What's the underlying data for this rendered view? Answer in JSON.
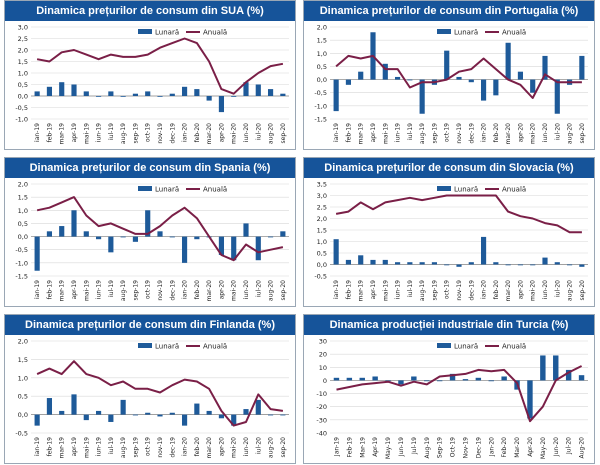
{
  "legend": {
    "monthly": "Lunară",
    "annual": "Anuală"
  },
  "colors": {
    "bar": "#1e5a99",
    "line": "#7a1f47",
    "title_bg": "#16549a",
    "grid": "#d8d8d8"
  },
  "chart_data": [
    {
      "id": "usa",
      "type": "bar+line",
      "title": "Dinamica prețurilor de consum din SUA (%)",
      "categories": [
        "ian-19",
        "feb-19",
        "mar-19",
        "apr-19",
        "mai-19",
        "iun-19",
        "iul-19",
        "aug-19",
        "sep-19",
        "oct-19",
        "nov-19",
        "dec-19",
        "ian-20",
        "feb-20",
        "mar-20",
        "apr-20",
        "mai-20",
        "iun-20",
        "iul-20",
        "aug-20",
        "sep-20"
      ],
      "yticks": [
        "-1,0",
        "-0,5",
        "0,0",
        "0,5",
        "1,0",
        "1,5",
        "2,0",
        "2,5",
        "3,0"
      ],
      "ylim": [
        -1.0,
        3.0
      ],
      "series": [
        {
          "name": "Lunară",
          "kind": "bar",
          "values": [
            0.2,
            0.4,
            0.6,
            0.5,
            0.2,
            0.0,
            0.2,
            0.0,
            0.1,
            0.2,
            0.0,
            0.1,
            0.4,
            0.3,
            -0.2,
            -0.7,
            0.0,
            0.6,
            0.5,
            0.3,
            0.1
          ]
        },
        {
          "name": "Anuală",
          "kind": "line",
          "values": [
            1.6,
            1.5,
            1.9,
            2.0,
            1.8,
            1.6,
            1.8,
            1.7,
            1.7,
            1.8,
            2.1,
            2.3,
            2.5,
            2.3,
            1.5,
            0.3,
            0.1,
            0.6,
            1.0,
            1.3,
            1.4
          ]
        }
      ]
    },
    {
      "id": "portugal",
      "type": "bar+line",
      "title": "Dinamica prețurilor de consum din Portugalia (%)",
      "categories": [
        "ian-19",
        "feb-19",
        "mar-19",
        "apr-19",
        "mai-19",
        "iun-19",
        "iul-19",
        "aug-19",
        "sep-19",
        "oct-19",
        "nov-19",
        "dec-19",
        "ian-20",
        "feb-20",
        "mar-20",
        "apr-20",
        "mai-20",
        "iun-20",
        "iul-20",
        "aug-20",
        "sep-20"
      ],
      "yticks": [
        "-1,5",
        "-1,0",
        "-0,5",
        "0,0",
        "0,5",
        "1,0",
        "1,5",
        "2,0"
      ],
      "ylim": [
        -1.5,
        2.0
      ],
      "series": [
        {
          "name": "Lunară",
          "kind": "bar",
          "values": [
            -1.2,
            -0.2,
            0.3,
            1.8,
            0.6,
            0.1,
            0.0,
            -1.3,
            -0.2,
            1.1,
            0.1,
            -0.1,
            -0.8,
            -0.6,
            1.4,
            0.3,
            -0.5,
            0.9,
            -1.3,
            -0.2,
            0.9
          ]
        },
        {
          "name": "Anuală",
          "kind": "line",
          "values": [
            0.5,
            0.9,
            0.8,
            0.9,
            0.4,
            0.4,
            -0.3,
            -0.1,
            -0.1,
            0.0,
            0.3,
            0.4,
            0.8,
            0.4,
            0.0,
            -0.2,
            -0.7,
            0.2,
            -0.1,
            -0.1,
            -0.1
          ]
        }
      ]
    },
    {
      "id": "spain",
      "type": "bar+line",
      "title": "Dinamica prețurilor de consum din Spania (%)",
      "categories": [
        "ian-19",
        "feb-19",
        "mar-19",
        "apr-19",
        "mai-19",
        "iun-19",
        "iul-19",
        "aug-19",
        "sep-19",
        "oct-19",
        "nov-19",
        "dec-19",
        "ian-20",
        "feb-20",
        "mar-20",
        "apr-20",
        "mai-20",
        "iun-20",
        "iul-20",
        "aug-20",
        "sep-20"
      ],
      "yticks": [
        "-1,5",
        "-1,0",
        "-0,5",
        "0,0",
        "0,5",
        "1,0",
        "1,5",
        "2,0"
      ],
      "ylim": [
        -1.5,
        2.0
      ],
      "series": [
        {
          "name": "Lunară",
          "kind": "bar",
          "values": [
            -1.3,
            0.2,
            0.4,
            1.0,
            0.2,
            -0.1,
            -0.6,
            0.0,
            -0.2,
            1.0,
            0.2,
            0.0,
            -1.0,
            -0.1,
            0.0,
            -0.7,
            -0.9,
            0.5,
            -0.9,
            0.0,
            0.2
          ]
        },
        {
          "name": "Anuală",
          "kind": "line",
          "values": [
            1.0,
            1.1,
            1.3,
            1.5,
            0.8,
            0.4,
            0.5,
            0.3,
            0.1,
            0.1,
            0.4,
            0.8,
            1.1,
            0.7,
            0.0,
            -0.7,
            -0.9,
            -0.3,
            -0.6,
            -0.5,
            -0.4
          ]
        }
      ]
    },
    {
      "id": "slovakia",
      "type": "bar+line",
      "title": "Dinamica prețurilor de consum din Slovacia (%)",
      "categories": [
        "ian-19",
        "feb-19",
        "mar-19",
        "apr-19",
        "mai-19",
        "iun-19",
        "iul-19",
        "aug-19",
        "sep-19",
        "oct-19",
        "nov-19",
        "dec-19",
        "ian-20",
        "feb-20",
        "mar-20",
        "apr-20",
        "mai-20",
        "iun-20",
        "iul-20",
        "aug-20",
        "sep-20"
      ],
      "yticks": [
        "-0,5",
        "0,0",
        "0,5",
        "1,0",
        "1,5",
        "2,0",
        "2,5",
        "3,0",
        "3,5"
      ],
      "ylim": [
        -0.5,
        3.5
      ],
      "series": [
        {
          "name": "Lunară",
          "kind": "bar",
          "values": [
            1.1,
            0.2,
            0.4,
            0.2,
            0.2,
            0.1,
            0.1,
            0.1,
            0.1,
            0.0,
            -0.1,
            0.1,
            1.2,
            0.1,
            0.0,
            0.0,
            0.0,
            0.3,
            0.1,
            0.0,
            -0.1
          ]
        },
        {
          "name": "Anuală",
          "kind": "line",
          "values": [
            2.2,
            2.3,
            2.7,
            2.4,
            2.7,
            2.8,
            2.9,
            2.8,
            2.9,
            3.0,
            3.0,
            3.0,
            3.0,
            3.0,
            2.3,
            2.1,
            2.0,
            1.8,
            1.7,
            1.4,
            1.4
          ]
        }
      ]
    },
    {
      "id": "finland",
      "type": "bar+line",
      "title": "Dinamica prețurilor de consum din Finlanda (%)",
      "categories": [
        "ian-19",
        "feb-19",
        "mar-19",
        "apr-19",
        "mai-19",
        "iun-19",
        "iul-19",
        "aug-19",
        "sep-19",
        "oct-19",
        "nov-19",
        "dec-19",
        "ian-20",
        "feb-20",
        "mar-20",
        "apr-20",
        "mai-20",
        "iun-20",
        "iul-20",
        "aug-20",
        "sep-20"
      ],
      "yticks": [
        "-0,5",
        "0,0",
        "0,5",
        "1,0",
        "1,5",
        "2,0"
      ],
      "ylim": [
        -0.5,
        2.0
      ],
      "series": [
        {
          "name": "Lunară",
          "kind": "bar",
          "values": [
            -0.3,
            0.45,
            0.1,
            0.55,
            -0.15,
            0.1,
            -0.2,
            0.4,
            0.0,
            0.05,
            -0.05,
            0.05,
            -0.3,
            0.3,
            0.1,
            -0.1,
            -0.3,
            0.15,
            0.4,
            0.0,
            0.0
          ]
        },
        {
          "name": "Anuală",
          "kind": "line",
          "values": [
            1.1,
            1.25,
            1.1,
            1.45,
            1.1,
            1.0,
            0.8,
            0.9,
            0.7,
            0.7,
            0.6,
            0.8,
            0.95,
            0.9,
            0.7,
            0.1,
            -0.3,
            -0.2,
            0.55,
            0.15,
            0.1
          ]
        }
      ]
    },
    {
      "id": "turkey",
      "type": "bar+line",
      "title": "Dinamica producției industriale din Turcia (%)",
      "categories": [
        "Jan-19",
        "Feb-19",
        "Mar-19",
        "Apr-19",
        "May-19",
        "Jun-19",
        "Jul-19",
        "Aug-19",
        "Sep-19",
        "Oct-19",
        "Nov-19",
        "Dec-19",
        "Jan-20",
        "Feb-20",
        "Mar-20",
        "Apr-20",
        "May-20",
        "Jun-20",
        "Jul-20",
        "Aug-20"
      ],
      "yticks": [
        "-40",
        "-30",
        "-20",
        "-10",
        "0",
        "10",
        "20",
        "30"
      ],
      "ylim": [
        -40,
        30
      ],
      "series": [
        {
          "name": "Lunară",
          "kind": "bar",
          "values": [
            2,
            2,
            2,
            3,
            0,
            -3,
            3,
            0,
            0,
            5,
            1,
            2,
            0,
            3,
            -7,
            -29,
            19,
            19,
            8,
            4
          ]
        },
        {
          "name": "Anuală",
          "kind": "line",
          "values": [
            -7,
            -5,
            -3,
            -2,
            -1,
            -4,
            -1,
            -3,
            3,
            4,
            5,
            8,
            7,
            8,
            -2,
            -31,
            -20,
            0,
            6,
            11
          ]
        }
      ]
    }
  ]
}
